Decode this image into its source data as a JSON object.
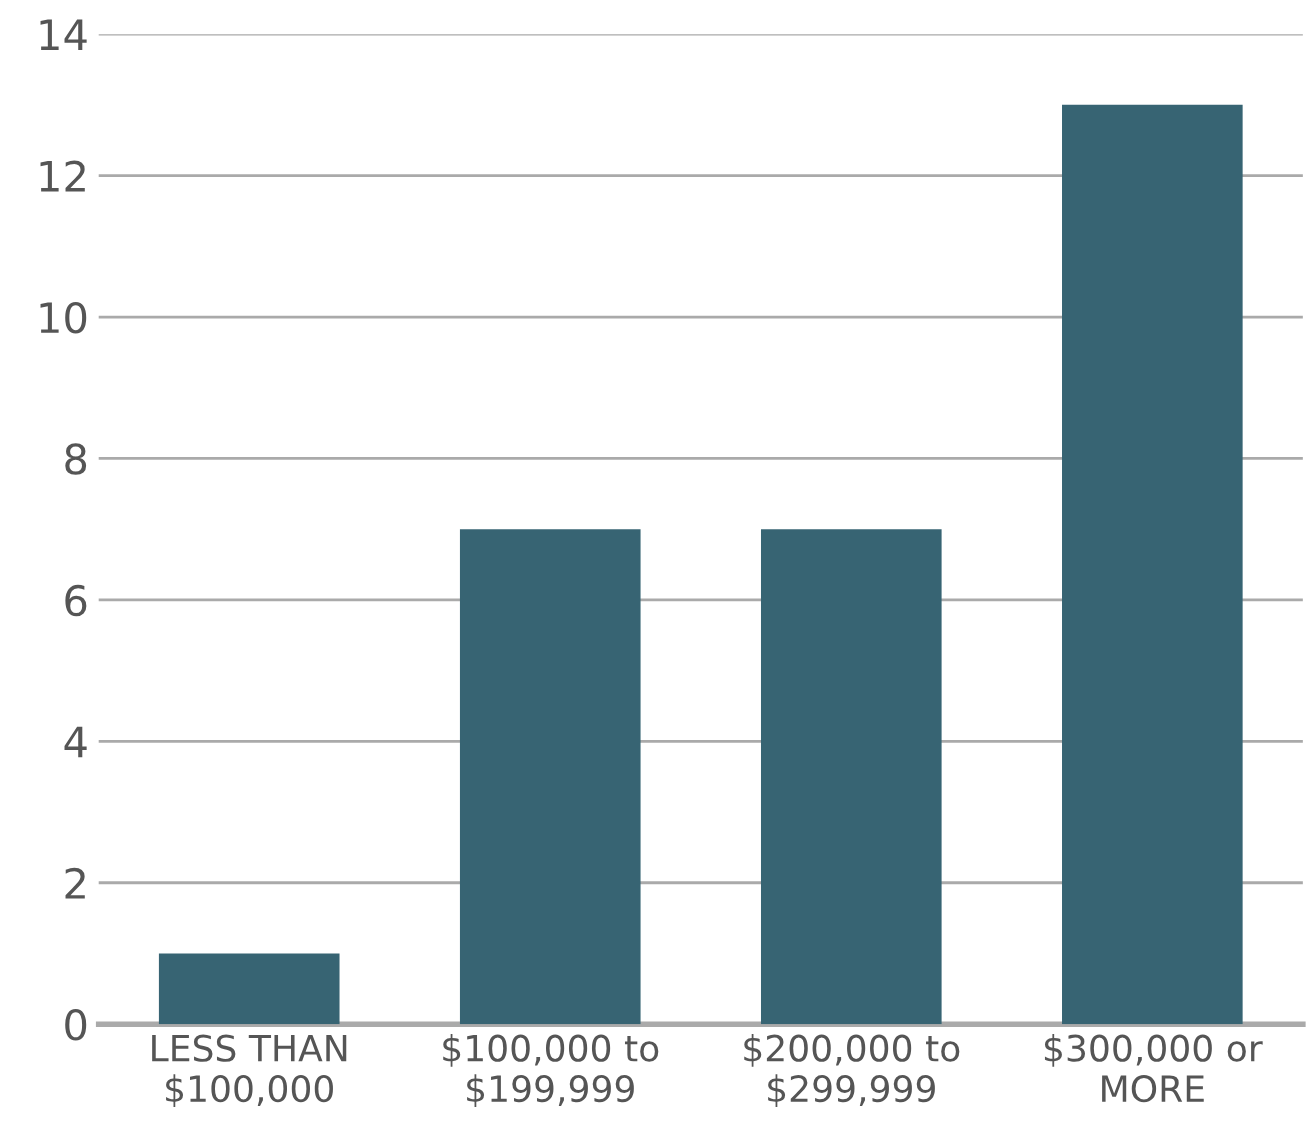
{
  "chart_data": {
    "type": "bar",
    "categories": [
      "LESS THAN\n$100,000",
      "$100,000 to\n$199,999",
      "$200,000 to\n$299,999",
      "$300,000 or\nMORE"
    ],
    "values": [
      1,
      7,
      7,
      13
    ],
    "color": "#376473",
    "ylim": [
      0,
      14
    ],
    "yticks": [
      0,
      2,
      4,
      6,
      8,
      10,
      12,
      14
    ],
    "grid": "y"
  }
}
